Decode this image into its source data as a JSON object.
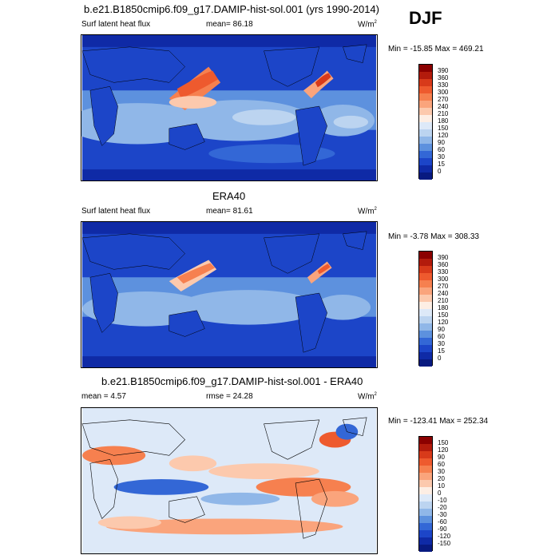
{
  "season": "DJF",
  "panels": [
    {
      "title": "b.e21.B1850cmip6.f09_g17.DAMIP-hist-sol.001 (yrs 1990-2014)",
      "left_label": "Surf latent heat flux",
      "mid_label": "mean=  86.18",
      "units": "W/m",
      "units_sup": "2",
      "minmax": "Min = -15.85 Max = 469.21",
      "ticks": [
        "390",
        "360",
        "330",
        "300",
        "270",
        "240",
        "210",
        "180",
        "150",
        "120",
        "90",
        "60",
        "30",
        "15",
        "0"
      ],
      "colors": [
        "#8b0000",
        "#b31b0c",
        "#d83a1a",
        "#ee5a2e",
        "#f6804f",
        "#faa47c",
        "#fcc9ad",
        "#fdeee4",
        "#dde9f8",
        "#bcd4f0",
        "#90b7e8",
        "#5d91de",
        "#3367d6",
        "#1c45c8",
        "#0f2aa6",
        "#081a80"
      ]
    },
    {
      "title": "ERA40",
      "left_label": "Surf latent heat flux",
      "mid_label": "mean=  81.61",
      "units": "W/m",
      "units_sup": "2",
      "minmax": "Min =  -3.78 Max = 308.33",
      "ticks": [
        "390",
        "360",
        "330",
        "300",
        "270",
        "240",
        "210",
        "180",
        "150",
        "120",
        "90",
        "60",
        "30",
        "15",
        "0"
      ],
      "colors": [
        "#8b0000",
        "#b31b0c",
        "#d83a1a",
        "#ee5a2e",
        "#f6804f",
        "#faa47c",
        "#fcc9ad",
        "#fdeee4",
        "#dde9f8",
        "#bcd4f0",
        "#90b7e8",
        "#5d91de",
        "#3367d6",
        "#1c45c8",
        "#0f2aa6",
        "#081a80"
      ]
    },
    {
      "title": "b.e21.B1850cmip6.f09_g17.DAMIP-hist-sol.001 - ERA40",
      "left_label": "mean =   4.57",
      "mid_label": "rmse =  24.28",
      "units": "W/m",
      "units_sup": "2",
      "minmax": "Min = -123.41 Max = 252.34",
      "ticks": [
        "150",
        "120",
        "90",
        "60",
        "30",
        "20",
        "10",
        "0",
        "-10",
        "-20",
        "-30",
        "-60",
        "-90",
        "-120",
        "-150"
      ],
      "colors": [
        "#8b0000",
        "#b31b0c",
        "#d83a1a",
        "#ee5a2e",
        "#f6804f",
        "#faa47c",
        "#fcc9ad",
        "#fdeee4",
        "#dde9f8",
        "#bcd4f0",
        "#90b7e8",
        "#5d91de",
        "#3367d6",
        "#1c45c8",
        "#0f2aa6",
        "#081a80"
      ]
    }
  ]
}
